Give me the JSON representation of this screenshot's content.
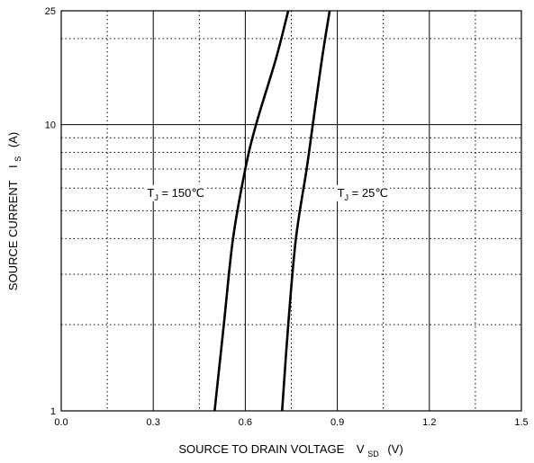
{
  "chart_data": {
    "type": "line",
    "title": "",
    "xlabel": {
      "main": "SOURCE TO DRAIN VOLTAGE",
      "symbol": "V",
      "subscript": "SD",
      "unit": "(V)"
    },
    "ylabel": {
      "main": "SOURCE CURRENT",
      "symbol": "I",
      "subscript": "S",
      "unit": "(A)"
    },
    "xlim": [
      0.0,
      1.5
    ],
    "ylim": [
      1,
      25
    ],
    "y_scale": "log",
    "grid": true,
    "x_ticks": [
      {
        "v": 0.0,
        "label": "0.0"
      },
      {
        "v": 0.3,
        "label": "0.3"
      },
      {
        "v": 0.6,
        "label": "0.6"
      },
      {
        "v": 0.9,
        "label": "0.9"
      },
      {
        "v": 1.2,
        "label": "1.2"
      },
      {
        "v": 1.5,
        "label": "1.5"
      }
    ],
    "y_ticks": [
      {
        "v": 1,
        "label": "1"
      },
      {
        "v": 10,
        "label": "10"
      },
      {
        "v": 25,
        "label": "25"
      }
    ],
    "series": [
      {
        "name": "",
        "annotation": {
          "main": "T",
          "sub": "J",
          "rest": " = 150℃",
          "x": 0.28,
          "y": 5.6
        },
        "x": [
          0.5,
          0.53,
          0.56,
          0.6,
          0.635,
          0.7,
          0.74
        ],
        "y": [
          1,
          2,
          4,
          7,
          10,
          17,
          25
        ]
      },
      {
        "name": "",
        "annotation": {
          "main": "T",
          "sub": "J",
          "rest": " = 25℃",
          "x": 0.9,
          "y": 5.6
        },
        "x": [
          0.72,
          0.74,
          0.765,
          0.8,
          0.82,
          0.85,
          0.875
        ],
        "y": [
          1,
          2,
          4,
          7,
          10,
          17,
          25
        ]
      }
    ]
  }
}
